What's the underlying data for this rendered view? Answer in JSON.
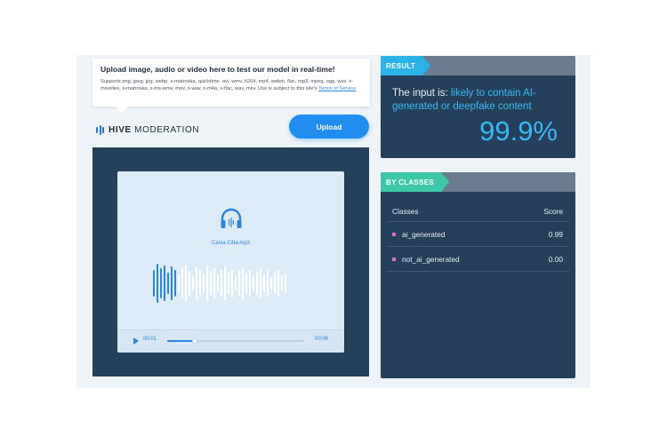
{
  "upload_info": {
    "title": "Upload image, audio or video here to test our model in real-time!",
    "description": "Supports png, jpeg, jpg, webp, x-matroska, quicktime, avi, wmv, h264, mp4, webm, flac, mp3, mpeg, ogg, wav, x-msvideo, x-matroska, x-ms-wmv, mov, x-wav, x-m4a, x-flac, wav, mkv. Use is subject to this site's",
    "tos_link": "Terms of Service"
  },
  "logo": {
    "bold": "HIVE",
    "light": "MODERATION"
  },
  "upload_button": {
    "label": "Upload"
  },
  "media": {
    "file_name": "Cania Citta.mp3",
    "icon": "headphones-icon",
    "player": {
      "current_time": "00:01",
      "duration": "00:06",
      "progress": 0.2
    }
  },
  "result": {
    "tag": "RESULT",
    "prefix": "The input is: ",
    "verdict": "likely to contain AI-generated or deepfake content",
    "score": "99.9%"
  },
  "classes": {
    "tag": "BY CLASSES",
    "header": {
      "name": "Classes",
      "score": "Score"
    },
    "rows": [
      {
        "name": "ai_generated",
        "score": "0.99"
      },
      {
        "name": "not_ai_generated",
        "score": "0.00"
      }
    ]
  },
  "colors": {
    "accent": "#1f8ef0",
    "panel": "#24405a",
    "result_tag": "#29b3e6",
    "classes_tag": "#3cc8a8",
    "swatch": "#e067d6"
  }
}
